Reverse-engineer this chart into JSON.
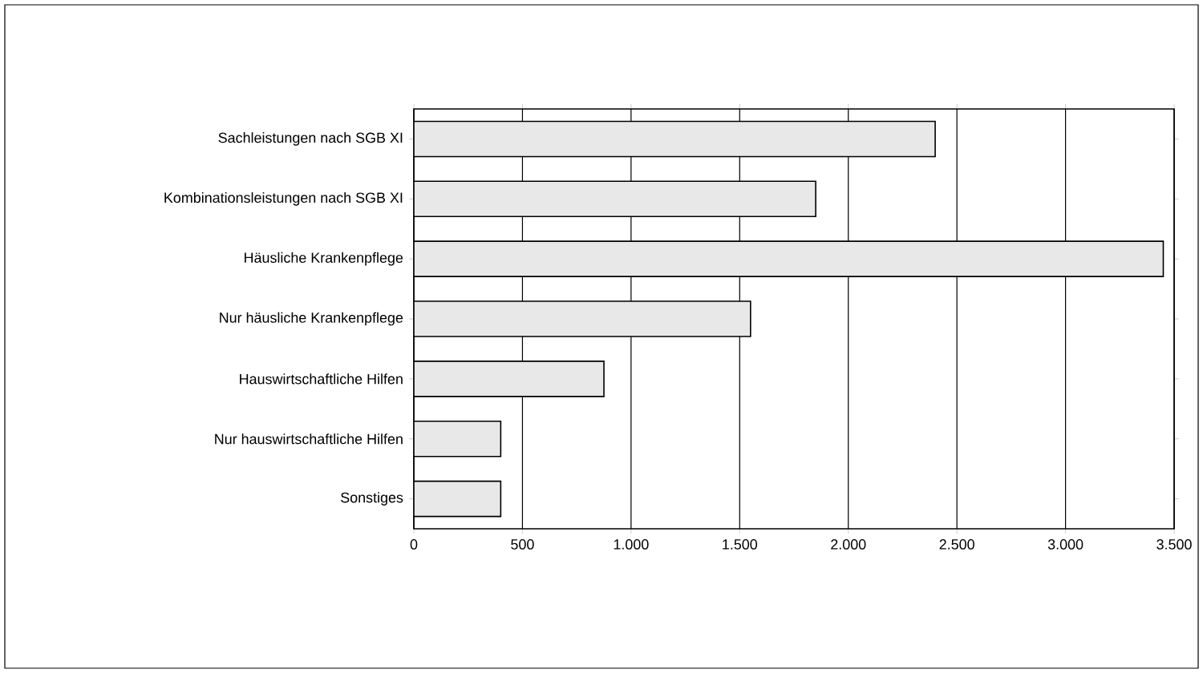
{
  "chart_data": {
    "type": "bar",
    "orientation": "horizontal",
    "categories": [
      "Sachleistungen nach SGB XI",
      "Kombinationsleistungen nach SGB XI",
      "Häusliche Krankenpflege",
      "Nur häusliche Krankenpflege",
      "Hauswirtschaftliche Hilfen",
      "Nur hauswirtschaftliche Hilfen",
      "Sonstiges"
    ],
    "values": [
      2400,
      1850,
      3450,
      1550,
      875,
      400,
      400
    ],
    "color": "#e8e8e8",
    "xlim": [
      0,
      3500
    ],
    "xticks": [
      {
        "value": 0,
        "label": "0"
      },
      {
        "value": 500,
        "label": "500"
      },
      {
        "value": 1000,
        "label": "1.000"
      },
      {
        "value": 1500,
        "label": "1.500"
      },
      {
        "value": 2000,
        "label": "2.000"
      },
      {
        "value": 2500,
        "label": "2.500"
      },
      {
        "value": 3000,
        "label": "3.000"
      },
      {
        "value": 3500,
        "label": "3.500"
      }
    ],
    "grid": "x"
  }
}
